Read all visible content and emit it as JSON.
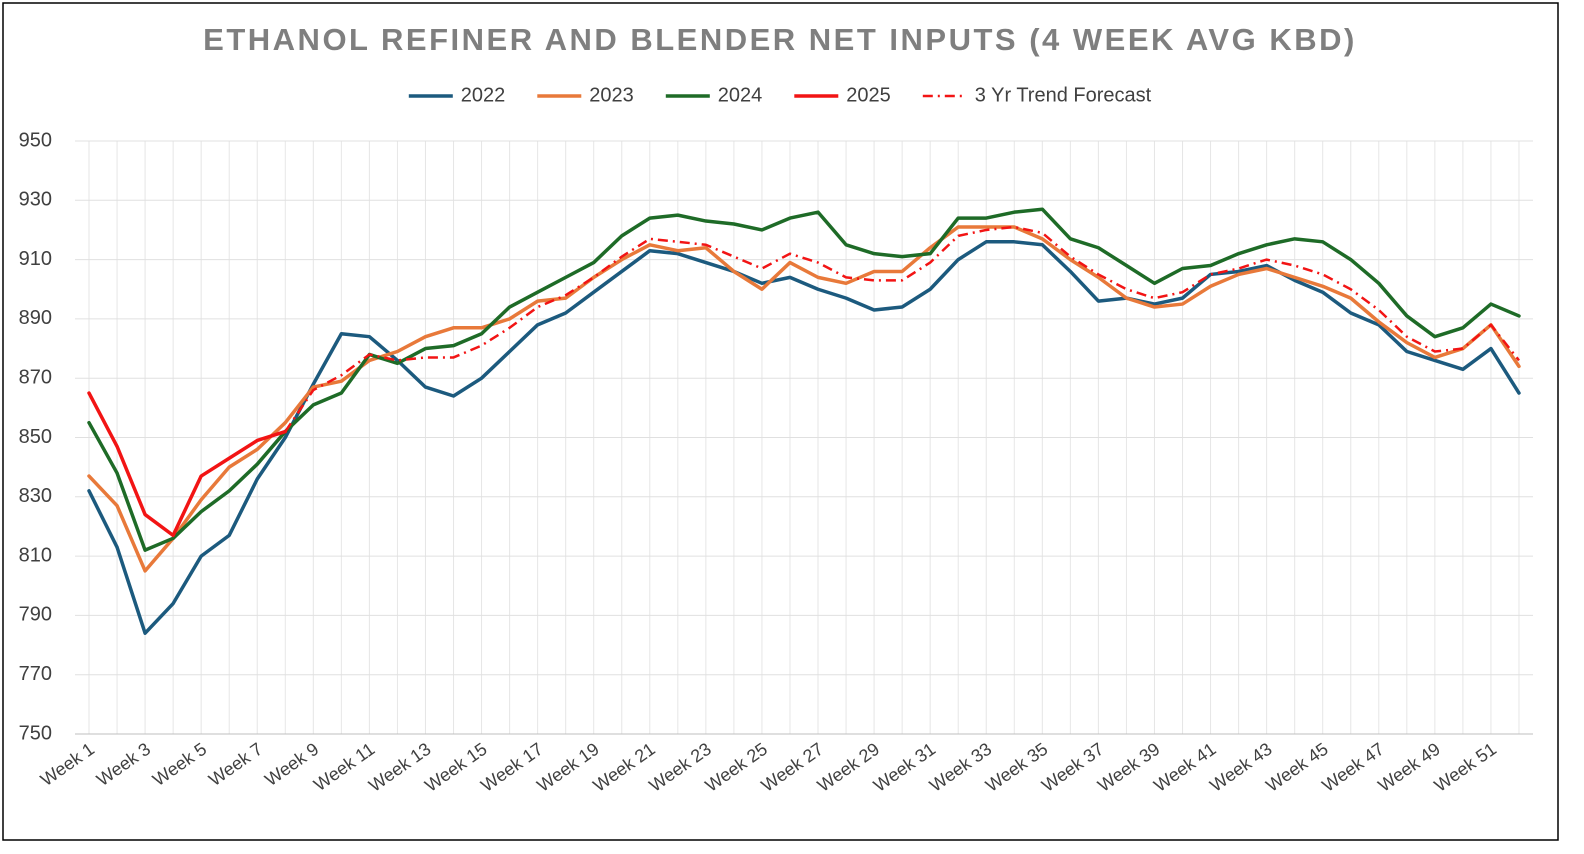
{
  "chart_data": {
    "type": "line",
    "title": "ETHANOL REFINER AND BLENDER NET INPUTS (4 WEEK AVG KBD)",
    "categories": [
      "Week 1",
      null,
      "Week 3",
      null,
      "Week 5",
      null,
      "Week 7",
      null,
      "Week 9",
      null,
      "Week 11",
      null,
      "Week 13",
      null,
      "Week 15",
      null,
      "Week 17",
      null,
      "Week 19",
      null,
      "Week 21",
      null,
      "Week 23",
      null,
      "Week 25",
      null,
      "Week 27",
      null,
      "Week 29",
      null,
      "Week 31",
      null,
      "Week 33",
      null,
      "Week 35",
      null,
      "Week 37",
      null,
      "Week 39",
      null,
      "Week 41",
      null,
      "Week 43",
      null,
      "Week 45",
      null,
      "Week 47",
      null,
      "Week 49",
      null,
      "Week 51",
      null
    ],
    "series": [
      {
        "name": "2022",
        "color": "#1c5a7e",
        "values": [
          832,
          813,
          784,
          794,
          810,
          817,
          836,
          850,
          868,
          885,
          884,
          876,
          867,
          864,
          870,
          879,
          888,
          892,
          899,
          906,
          913,
          912,
          909,
          906,
          902,
          904,
          900,
          897,
          893,
          894,
          900,
          910,
          916,
          916,
          915,
          906,
          896,
          897,
          895,
          897,
          905,
          906,
          908,
          903,
          899,
          892,
          888,
          879,
          876,
          873,
          880,
          865
        ]
      },
      {
        "name": "2023",
        "color": "#e8793a",
        "values": [
          837,
          827,
          805,
          816,
          829,
          840,
          846,
          855,
          867,
          869,
          876,
          879,
          884,
          887,
          887,
          890,
          896,
          897,
          904,
          910,
          915,
          913,
          914,
          906,
          900,
          909,
          904,
          902,
          906,
          906,
          914,
          921,
          921,
          921,
          917,
          910,
          904,
          897,
          894,
          895,
          901,
          905,
          907,
          904,
          901,
          897,
          889,
          882,
          877,
          880,
          888,
          874
        ]
      },
      {
        "name": "2024",
        "color": "#1e6b27",
        "values": [
          855,
          838,
          812,
          816,
          825,
          832,
          841,
          852,
          861,
          865,
          878,
          875,
          880,
          881,
          885,
          894,
          899,
          904,
          909,
          918,
          924,
          925,
          923,
          922,
          920,
          924,
          926,
          915,
          912,
          911,
          912,
          924,
          924,
          926,
          927,
          917,
          914,
          908,
          902,
          907,
          908,
          912,
          915,
          917,
          916,
          910,
          902,
          891,
          884,
          887,
          895,
          891
        ]
      },
      {
        "name": "2025",
        "color": "#f21414",
        "values": [
          865,
          847,
          824,
          817,
          837,
          843,
          849,
          852,
          null,
          null,
          null,
          null,
          null,
          null,
          null,
          null,
          null,
          null,
          null,
          null,
          null,
          null,
          null,
          null,
          null,
          null,
          null,
          null,
          null,
          null,
          null,
          null,
          null,
          null,
          null,
          null,
          null,
          null,
          null,
          null,
          null,
          null,
          null,
          null,
          null,
          null,
          null,
          null,
          null,
          null,
          null,
          null
        ]
      },
      {
        "name": "3 Yr Trend Forecast",
        "color": "#f21414",
        "line_style": "dashdot",
        "values": [
          null,
          null,
          null,
          null,
          null,
          null,
          null,
          852,
          866,
          871,
          878,
          876,
          877,
          877,
          881,
          887,
          894,
          898,
          904,
          911,
          917,
          916,
          915,
          911,
          907,
          912,
          909,
          904,
          903,
          903,
          909,
          918,
          920,
          921,
          919,
          911,
          905,
          900,
          897,
          899,
          905,
          907,
          910,
          908,
          905,
          900,
          893,
          884,
          879,
          880,
          888,
          876
        ]
      }
    ],
    "ylim": [
      750,
      950
    ],
    "yticks": [
      750,
      770,
      790,
      810,
      830,
      850,
      870,
      890,
      910,
      930,
      950
    ],
    "grid": true,
    "legend": "top"
  }
}
